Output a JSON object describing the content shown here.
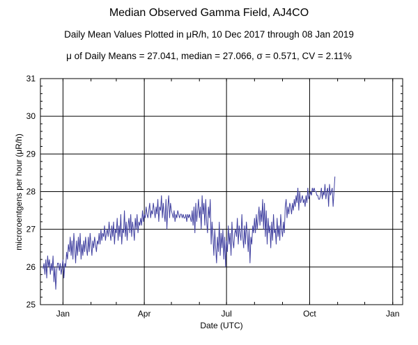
{
  "header": {
    "title": "Median Observed Gamma Field, AJ4CO",
    "subtitle": "Daily Mean Values Plotted in μR/h, 10 Dec 2017 through 08 Jan 2019",
    "stats": "μ of Daily Means = 27.041,   median = 27.066,   σ = 0.571,   CV = 2.11%"
  },
  "chart_data": {
    "type": "line",
    "title": "Median Observed Gamma Field, AJ4CO",
    "subtitle": "Daily Mean Values Plotted in μR/h, 10 Dec 2017 through 08 Jan 2019",
    "xlabel": "Date (UTC)",
    "ylabel": "microroentgens per hour (μR/h)",
    "x_range": [
      "2017-12-07",
      "2019-01-12"
    ],
    "ylim": [
      25,
      31
    ],
    "y_ticks": [
      25,
      26,
      27,
      28,
      29,
      30,
      31
    ],
    "x_ticks": [
      {
        "label": "Jan",
        "date": "2018-01-01"
      },
      {
        "label": "Apr",
        "date": "2018-04-01"
      },
      {
        "label": "Jul",
        "date": "2018-07-01"
      },
      {
        "label": "Oct",
        "date": "2018-10-01"
      },
      {
        "label": "Jan",
        "date": "2019-01-01"
      }
    ],
    "grid": true,
    "line_color": "#3f3f9f",
    "series": [
      {
        "start_date": "2017-12-10",
        "step_days": 1,
        "values": [
          25.95,
          26.1,
          25.8,
          26.2,
          25.7,
          26.3,
          26.0,
          26.2,
          25.8,
          26.1,
          25.9,
          26.3,
          25.6,
          26.0,
          25.4,
          25.9,
          26.1,
          26.1,
          25.9,
          26.1,
          25.8,
          26.0,
          26.2,
          25.7,
          26.1,
          26.0,
          26.4,
          26.2,
          26.6,
          26.4,
          26.8,
          26.3,
          26.7,
          26.2,
          26.9,
          26.5,
          26.1,
          26.7,
          26.3,
          26.8,
          26.4,
          26.9,
          26.2,
          26.6,
          26.3,
          26.7,
          26.4,
          26.8,
          26.5,
          26.3,
          26.8,
          26.4,
          26.9,
          26.6,
          26.3,
          26.7,
          26.5,
          26.8,
          26.6,
          26.4,
          26.7,
          26.6,
          26.9,
          26.6,
          27.0,
          26.7,
          26.9,
          26.8,
          27.1,
          26.7,
          26.9,
          27.0,
          26.8,
          27.2,
          26.9,
          26.7,
          27.1,
          26.8,
          27.2,
          26.6,
          27.0,
          26.9,
          27.3,
          26.7,
          27.1,
          26.8,
          27.4,
          26.6,
          27.0,
          26.9,
          27.5,
          26.8,
          27.2,
          26.7,
          27.1,
          27.3,
          26.9,
          27.4,
          26.8,
          27.2,
          27.0,
          26.7,
          27.3,
          27.0,
          27.4,
          26.9,
          27.2,
          27.1,
          27.3,
          27.1,
          27.5,
          27.2,
          27.4,
          27.3,
          27.6,
          27.4,
          27.3,
          27.5,
          27.7,
          27.3,
          27.5,
          27.4,
          27.7,
          27.5,
          27.3,
          27.6,
          27.4,
          27.8,
          27.2,
          27.6,
          27.5,
          27.9,
          27.3,
          27.7,
          27.4,
          27.2,
          27.8,
          27.0,
          27.6,
          27.9,
          27.3,
          27.7,
          27.5,
          27.4,
          27.3,
          27.5,
          27.2,
          27.4,
          27.3,
          27.5,
          27.4,
          27.3,
          27.4,
          27.4,
          27.3,
          27.4,
          27.3,
          27.3,
          27.4,
          27.2,
          27.4,
          27.3,
          27.4,
          27.3,
          27.2,
          27.5,
          27.1,
          27.6,
          26.9,
          27.7,
          27.2,
          27.5,
          27.8,
          27.3,
          27.6,
          27.0,
          27.9,
          27.4,
          27.7,
          27.1,
          27.8,
          27.2,
          26.9,
          27.6,
          27.3,
          27.8,
          26.6,
          27.2,
          26.8,
          26.3,
          27.0,
          26.5,
          26.1,
          26.8,
          26.4,
          27.2,
          26.3,
          26.9,
          26.5,
          27.0,
          26.2,
          26.8,
          26.0,
          26.7,
          26.4,
          27.1,
          26.6,
          26.9,
          26.3,
          27.2,
          26.7,
          26.5,
          26.9,
          27.0,
          26.8,
          27.3,
          26.6,
          27.1,
          26.9,
          26.7,
          27.4,
          26.8,
          26.5,
          27.1,
          26.6,
          27.2,
          26.9,
          26.4,
          27.0,
          26.1,
          26.8,
          26.6,
          27.1,
          26.9,
          27.3,
          26.9,
          27.4,
          27.0,
          27.3,
          27.6,
          27.1,
          27.5,
          27.2,
          27.8,
          27.0,
          27.7,
          26.8,
          27.5,
          26.6,
          27.3,
          26.9,
          27.1,
          26.5,
          27.2,
          26.7,
          27.4,
          26.9,
          27.0,
          26.6,
          27.3,
          26.8,
          27.1,
          26.7,
          27.4,
          27.0,
          26.8,
          27.2,
          26.9,
          27.6,
          27.8,
          27.3,
          27.6,
          27.4,
          27.7,
          27.6,
          27.4,
          27.7,
          27.5,
          27.8,
          27.6,
          27.9,
          27.7,
          28.1,
          27.5,
          28.0,
          27.7,
          27.8,
          27.9,
          27.7,
          27.8,
          27.6,
          27.9,
          27.7,
          28.1,
          27.8,
          27.9,
          28.0,
          27.9,
          28.1,
          28.0,
          28.1,
          28.0,
          28.0,
          27.9,
          27.9,
          27.8,
          27.8,
          27.9,
          28.1,
          27.8,
          28.0,
          27.9,
          28.2,
          27.8,
          28.0,
          28.1,
          27.6,
          28.2,
          27.9,
          28.0,
          28.1,
          27.6,
          28.0,
          28.4
        ]
      }
    ]
  }
}
